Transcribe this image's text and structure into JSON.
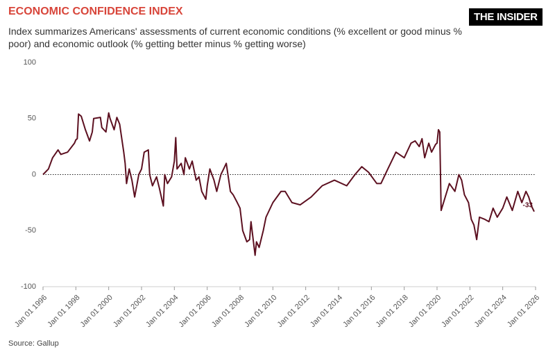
{
  "chart_data": {
    "type": "line",
    "title": "ECONOMIC CONFIDENCE INDEX",
    "subtitle": "Index summarizes Americans' assessments of current economic conditions (% excellent or good minus % poor) and economic outlook (% getting better minus % getting worse)",
    "logo": "THE INSIDER",
    "source": "Source: Gallup",
    "color": "#5c1020",
    "zero_line": true,
    "ylim": [
      -100,
      100
    ],
    "yticks": [
      100,
      50,
      0,
      -50,
      -100
    ],
    "xlim": [
      "1996-01-01",
      "2026-01-01"
    ],
    "xticks": [
      {
        "value": "1996-01-01",
        "label": "Jan 01 1996"
      },
      {
        "value": "1998-01-01",
        "label": "Jan 01 1998"
      },
      {
        "value": "2000-01-01",
        "label": "Jan 01 2000"
      },
      {
        "value": "2002-01-01",
        "label": "Jan 01 2002"
      },
      {
        "value": "2004-01-01",
        "label": "Jan 01 2004"
      },
      {
        "value": "2006-01-01",
        "label": "Jan 01 2006"
      },
      {
        "value": "2008-01-01",
        "label": "Jan 01 2008"
      },
      {
        "value": "2010-01-01",
        "label": "Jan 01 2010"
      },
      {
        "value": "2012-01-01",
        "label": "Jan 01 2012"
      },
      {
        "value": "2014-01-01",
        "label": "Jan 01 2014"
      },
      {
        "value": "2016-01-01",
        "label": "Jan 01 2016"
      },
      {
        "value": "2018-01-01",
        "label": "Jan 01 2018"
      },
      {
        "value": "2020-01-01",
        "label": "Jan 01 2020"
      },
      {
        "value": "2022-01-01",
        "label": "Jan 01 2022"
      },
      {
        "value": "2024-01-01",
        "label": "Jan 01 2024"
      },
      {
        "value": "2026-01-01",
        "label": "Jan 01 2026"
      }
    ],
    "x": [
      "1996-01-01",
      "1996-05-01",
      "1996-08-01",
      "1996-12-01",
      "1997-02-01",
      "1997-07-01",
      "1997-12-01",
      "1998-01-01",
      "1998-02-01",
      "1998-03-01",
      "1998-05-01",
      "1998-08-01",
      "1998-11-01",
      "1999-01-01",
      "1999-02-01",
      "1999-07-01",
      "1999-08-01",
      "1999-11-01",
      "2000-01-01",
      "2000-02-01",
      "2000-05-01",
      "2000-07-01",
      "2000-09-01",
      "2000-12-01",
      "2001-01-01",
      "2001-02-01",
      "2001-04-01",
      "2001-06-01",
      "2001-08-01",
      "2001-11-01",
      "2002-01-01",
      "2002-03-01",
      "2002-06-01",
      "2002-07-01",
      "2002-09-01",
      "2002-12-01",
      "2003-02-01",
      "2003-05-01",
      "2003-06-01",
      "2003-08-01",
      "2003-11-01",
      "2004-01-01",
      "2004-02-01",
      "2004-03-01",
      "2004-06-01",
      "2004-08-01",
      "2004-09-01",
      "2004-12-01",
      "2005-02-01",
      "2005-05-01",
      "2005-07-01",
      "2005-09-01",
      "2005-12-01",
      "2006-01-01",
      "2006-03-01",
      "2006-06-01",
      "2006-08-01",
      "2006-11-01",
      "2007-01-01",
      "2007-03-01",
      "2007-06-01",
      "2007-08-01",
      "2007-11-01",
      "2008-01-01",
      "2008-03-01",
      "2008-06-01",
      "2008-08-01",
      "2008-09-01",
      "2008-12-01",
      "2009-01-01",
      "2009-03-01",
      "2009-06-01",
      "2009-08-01",
      "2010-01-01",
      "2010-07-01",
      "2010-10-01",
      "2011-03-01",
      "2011-09-01",
      "2012-05-01",
      "2013-01-01",
      "2013-10-01",
      "2014-07-01",
      "2015-01-01",
      "2015-06-01",
      "2015-11-01",
      "2016-05-01",
      "2016-08-01",
      "2017-01-01",
      "2017-07-01",
      "2018-01-01",
      "2018-06-01",
      "2018-09-01",
      "2018-12-01",
      "2019-02-01",
      "2019-04-01",
      "2019-07-01",
      "2019-09-01",
      "2019-12-01",
      "2020-01-01",
      "2020-02-01",
      "2020-03-01",
      "2020-04-01",
      "2020-07-01",
      "2020-10-01",
      "2021-02-01",
      "2021-05-01",
      "2021-07-01",
      "2021-09-01",
      "2021-12-01",
      "2022-02-01",
      "2022-04-01",
      "2022-06-01",
      "2022-08-01",
      "2022-12-01",
      "2023-03-01",
      "2023-06-01",
      "2023-09-01",
      "2024-01-01",
      "2024-04-01",
      "2024-08-01",
      "2024-12-01",
      "2025-03-01",
      "2025-06-01",
      "2025-08-01",
      "2025-10-01",
      "2025-12-01"
    ],
    "values": [
      0,
      5,
      15,
      22,
      18,
      20,
      28,
      31,
      32,
      54,
      52,
      40,
      30,
      38,
      50,
      51,
      42,
      38,
      55,
      50,
      40,
      51,
      45,
      20,
      10,
      -8,
      5,
      -5,
      -20,
      0,
      5,
      20,
      22,
      0,
      -10,
      -2,
      -12,
      -28,
      0,
      -8,
      -2,
      12,
      33,
      5,
      10,
      0,
      15,
      5,
      12,
      -5,
      -2,
      -15,
      -22,
      -10,
      5,
      -5,
      -15,
      0,
      5,
      10,
      -15,
      -18,
      -25,
      -30,
      -50,
      -60,
      -58,
      -42,
      -72,
      -60,
      -65,
      -50,
      -38,
      -25,
      -15,
      -15,
      -25,
      -27,
      -20,
      -10,
      -5,
      -10,
      0,
      7,
      2,
      -8,
      -8,
      5,
      20,
      15,
      28,
      30,
      25,
      32,
      15,
      28,
      20,
      27,
      28,
      40,
      38,
      -32,
      -20,
      -8,
      -15,
      0,
      -5,
      -18,
      -25,
      -40,
      -45,
      -58,
      -38,
      -40,
      -42,
      -30,
      -38,
      -30,
      -20,
      -32,
      -15,
      -25,
      -15,
      -20,
      -28,
      -33
    ]
  }
}
